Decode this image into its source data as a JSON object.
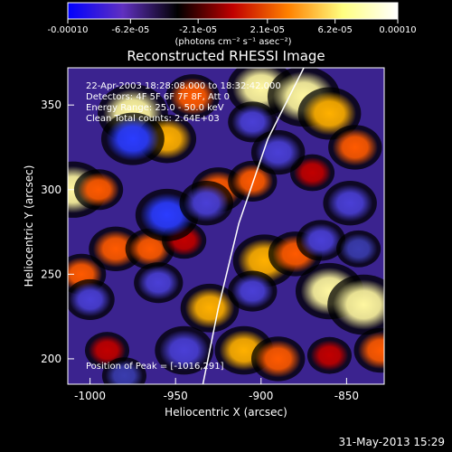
{
  "chart_data": {
    "type": "heatmap",
    "title": "Reconstructed RHESSI Image",
    "xlabel": "Heliocentric X (arcsec)",
    "ylabel": "Heliocentric Y (arcsec)",
    "x_range": [
      -1013,
      -828
    ],
    "y_range": [
      185,
      372
    ],
    "x_ticks": [
      -1000,
      -950,
      -900,
      -850
    ],
    "x_tick_labels": [
      "-1000",
      "-950",
      "-900",
      "-850"
    ],
    "y_ticks": [
      200,
      250,
      300,
      350
    ],
    "y_tick_labels": [
      "200",
      "250",
      "300",
      "350"
    ],
    "colorbar": {
      "min": -0.0001,
      "max": 0.0001,
      "ticks": [
        -0.0001,
        -6.2e-05,
        -2.1e-05,
        2.1e-05,
        6.2e-05,
        0.0001
      ],
      "tick_labels": [
        "-0.00010",
        "-6.2e-05",
        "-2.1e-05",
        "2.1e-05",
        "6.2e-05",
        "0.00010"
      ],
      "units": "(photons cm⁻² s⁻¹ asec⁻²)",
      "colors": [
        "#0000ff",
        "#6030c0",
        "#000000",
        "#c00000",
        "#ff8000",
        "#ffff80",
        "#ffffff"
      ]
    },
    "annotations": [
      "22-Apr-2003 18:28:08.000 to 18:32:42.000",
      "Detectors: 4F 5F 6F 7F 8F, Att 0",
      "Energy Range: 25.0 - 50.0 keV",
      "Clean    Total counts: 2.64E+03"
    ],
    "peak_label": "Position of Peak = [-1016,291]",
    "limb_curve_data_points": [
      [
        -934,
        185
      ],
      [
        -925,
        230
      ],
      [
        -913,
        280
      ],
      [
        -896,
        330
      ],
      [
        -875,
        372
      ]
    ],
    "blobs": [
      {
        "x": -975,
        "y": 345,
        "value": 9.5e-05
      },
      {
        "x": -955,
        "y": 330,
        "value": 7e-05
      },
      {
        "x": -940,
        "y": 355,
        "value": 6e-05
      },
      {
        "x": -900,
        "y": 360,
        "value": 9e-05
      },
      {
        "x": -875,
        "y": 355,
        "value": 0.0001
      },
      {
        "x": -860,
        "y": 345,
        "value": 8e-05
      },
      {
        "x": -845,
        "y": 325,
        "value": 6e-05
      },
      {
        "x": -1010,
        "y": 300,
        "value": 9e-05
      },
      {
        "x": -995,
        "y": 300,
        "value": 5e-05
      },
      {
        "x": -925,
        "y": 300,
        "value": 6e-05
      },
      {
        "x": -905,
        "y": 305,
        "value": 5e-05
      },
      {
        "x": -870,
        "y": 310,
        "value": 4e-05
      },
      {
        "x": -985,
        "y": 265,
        "value": 6e-05
      },
      {
        "x": -965,
        "y": 265,
        "value": 5e-05
      },
      {
        "x": -945,
        "y": 270,
        "value": 4e-05
      },
      {
        "x": -1005,
        "y": 250,
        "value": 5e-05
      },
      {
        "x": -898,
        "y": 258,
        "value": 8e-05
      },
      {
        "x": -880,
        "y": 262,
        "value": 6e-05
      },
      {
        "x": -930,
        "y": 230,
        "value": 7e-05
      },
      {
        "x": -860,
        "y": 240,
        "value": 9e-05
      },
      {
        "x": -840,
        "y": 232,
        "value": 0.0001
      },
      {
        "x": -990,
        "y": 205,
        "value": 4e-05
      },
      {
        "x": -910,
        "y": 205,
        "value": 7e-05
      },
      {
        "x": -890,
        "y": 200,
        "value": 6e-05
      },
      {
        "x": -860,
        "y": 202,
        "value": 4e-05
      },
      {
        "x": -830,
        "y": 205,
        "value": 6e-05
      },
      {
        "x": -975,
        "y": 330,
        "value": -8e-05
      },
      {
        "x": -955,
        "y": 285,
        "value": -8e-05
      },
      {
        "x": -932,
        "y": 292,
        "value": -6e-05
      },
      {
        "x": -1000,
        "y": 235,
        "value": -5e-05
      },
      {
        "x": -960,
        "y": 245,
        "value": -5e-05
      },
      {
        "x": -945,
        "y": 205,
        "value": -7e-05
      },
      {
        "x": -905,
        "y": 240,
        "value": -5e-05
      },
      {
        "x": -905,
        "y": 340,
        "value": -5e-05
      },
      {
        "x": -890,
        "y": 322,
        "value": -6e-05
      },
      {
        "x": -848,
        "y": 292,
        "value": -6e-05
      },
      {
        "x": -865,
        "y": 270,
        "value": -5e-05
      },
      {
        "x": -843,
        "y": 265,
        "value": -4e-05
      },
      {
        "x": -980,
        "y": 190,
        "value": -4e-05
      }
    ]
  },
  "footer": {
    "timestamp": "31-May-2013 15:29"
  }
}
